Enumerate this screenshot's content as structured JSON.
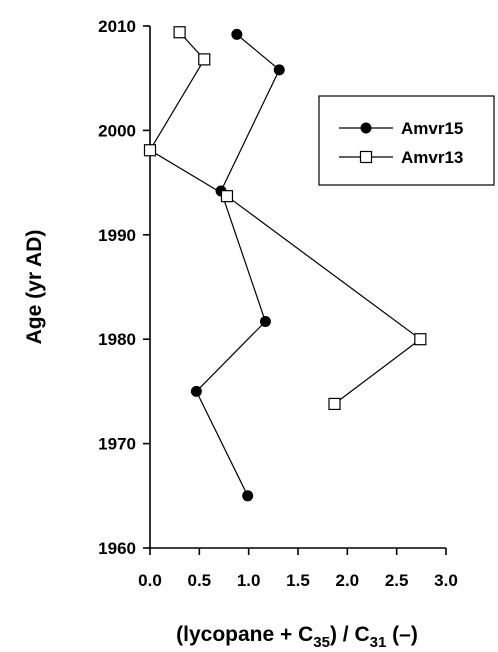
{
  "chart_data": {
    "type": "line",
    "xlabel": {
      "pre": "(lycopane + C",
      "sub1": "35",
      "mid": ") / C",
      "sub2": "31",
      "post": " (–)"
    },
    "ylabel": "Age (yr AD)",
    "xlim": [
      0.0,
      3.0
    ],
    "ylim": [
      1960,
      2010
    ],
    "xticks": [
      "0.0",
      "0.5",
      "1.0",
      "1.5",
      "2.0",
      "2.5",
      "3.0"
    ],
    "yticks": [
      "1960",
      "1970",
      "1980",
      "1990",
      "2000",
      "2010"
    ],
    "legend": {
      "position": "top-right"
    },
    "series": [
      {
        "name": "Amvr15",
        "marker": "filled-circle",
        "color": "#000000",
        "points": [
          {
            "x": 0.88,
            "y": 2009.2
          },
          {
            "x": 1.31,
            "y": 2005.8
          },
          {
            "x": 0.72,
            "y": 1994.2
          },
          {
            "x": 1.17,
            "y": 1981.7
          },
          {
            "x": 0.47,
            "y": 1975.0
          },
          {
            "x": 0.99,
            "y": 1965.0
          }
        ]
      },
      {
        "name": "Amvr13",
        "marker": "open-square",
        "color": "#000000",
        "points": [
          {
            "x": 0.3,
            "y": 2009.4
          },
          {
            "x": 0.55,
            "y": 2006.8
          },
          {
            "x": 0.0,
            "y": 1998.1
          },
          {
            "x": 0.78,
            "y": 1993.7
          },
          {
            "x": 2.74,
            "y": 1980.0
          },
          {
            "x": 1.87,
            "y": 1973.8
          }
        ]
      }
    ]
  }
}
